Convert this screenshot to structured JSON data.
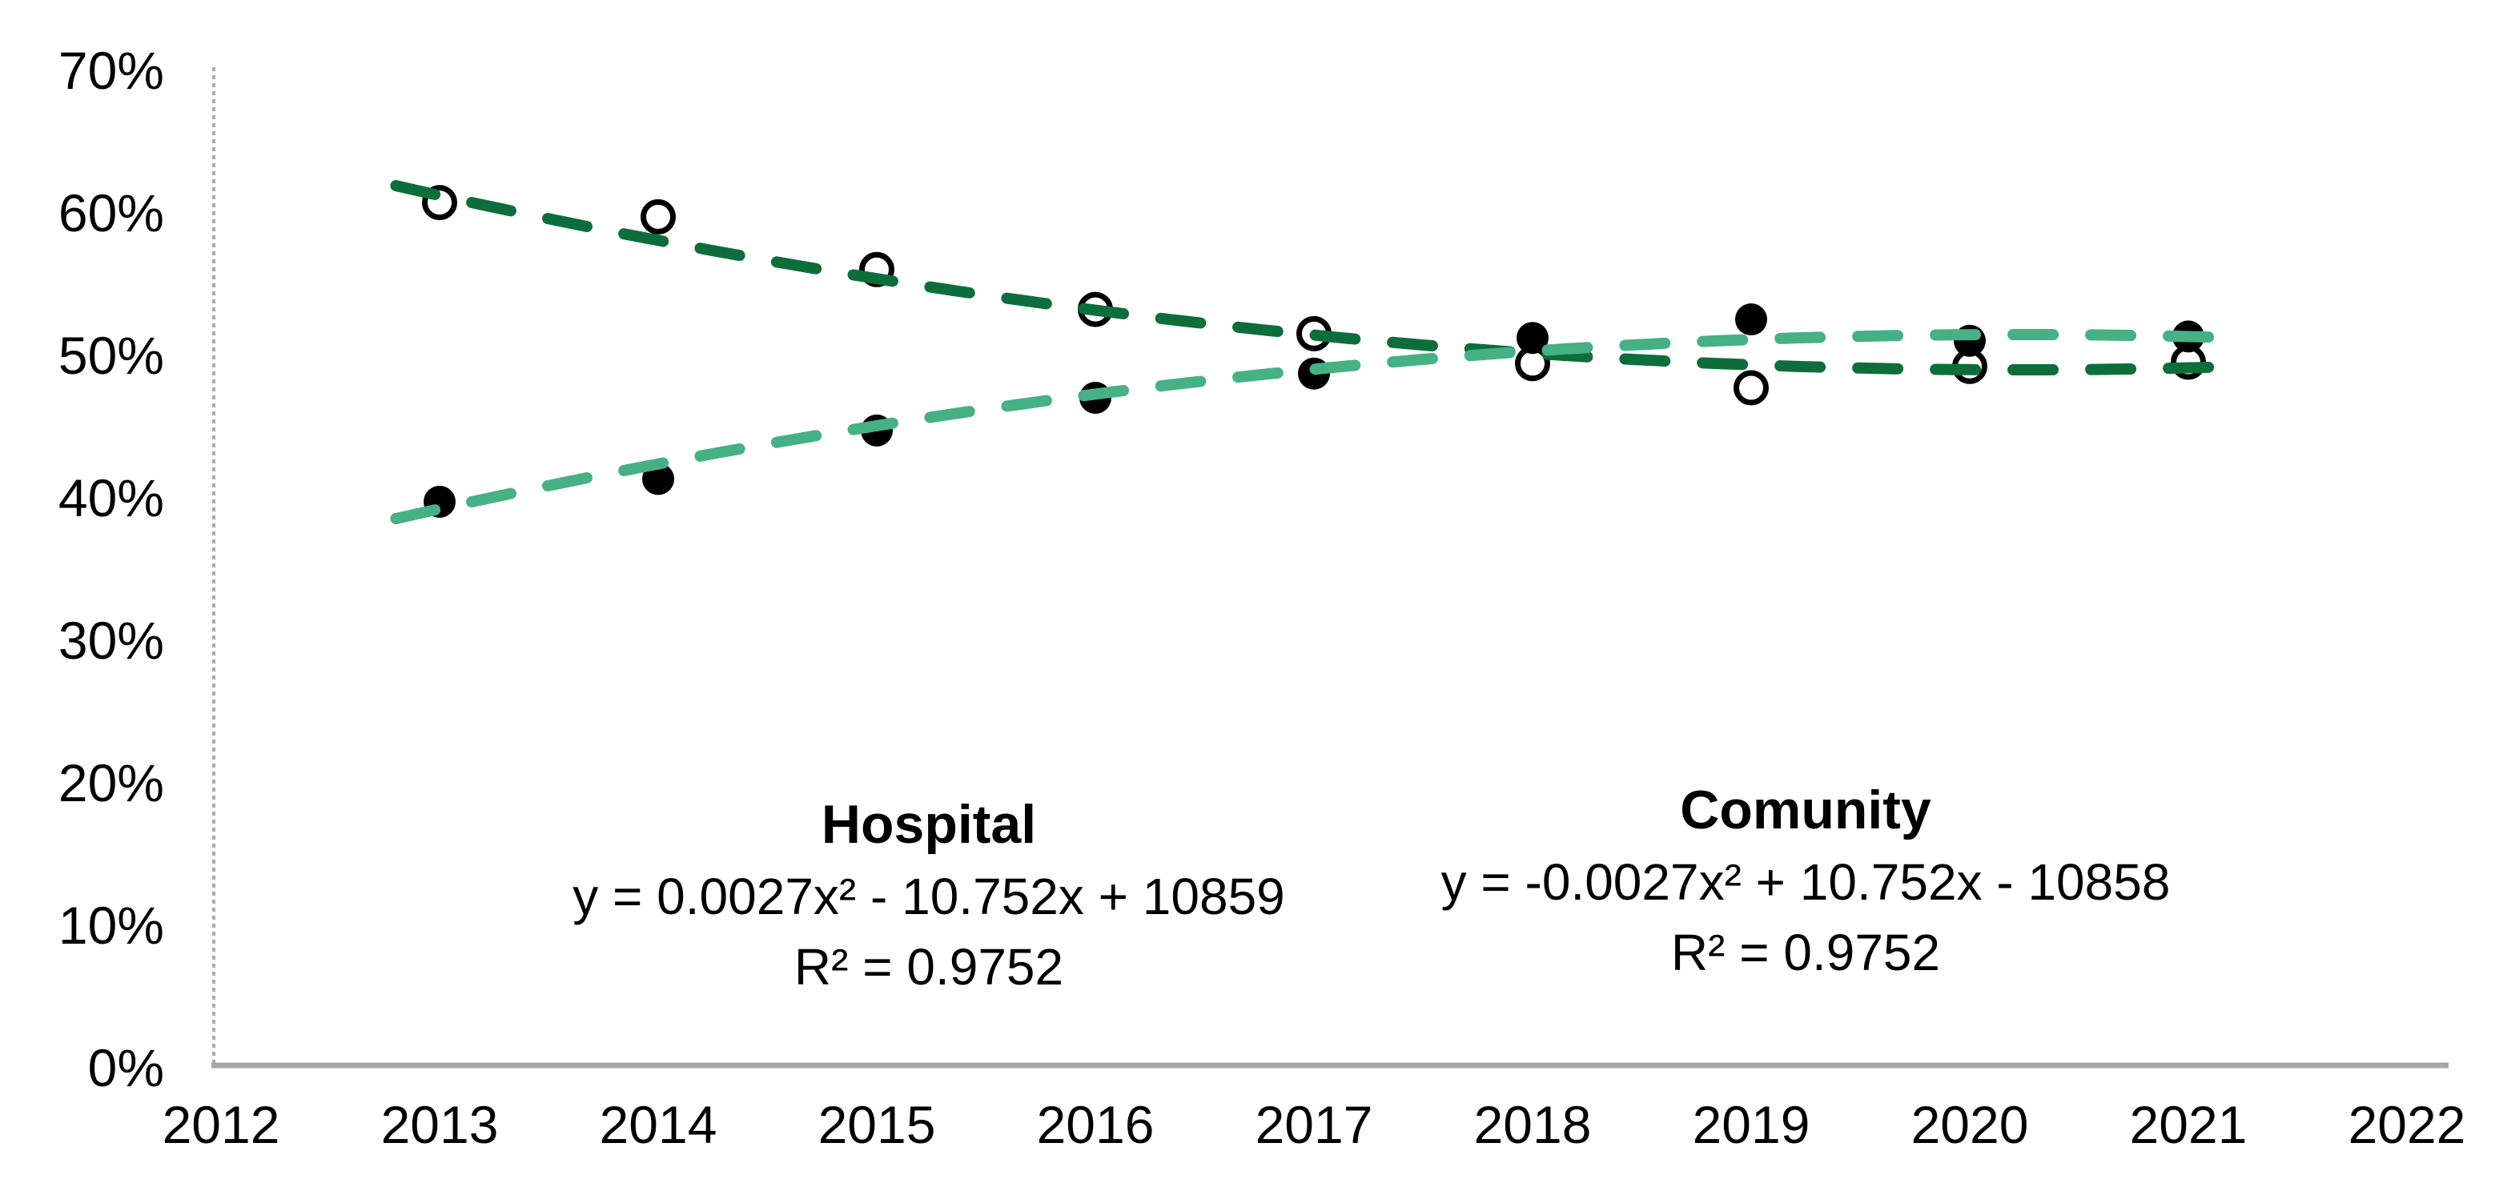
{
  "chart_data": {
    "type": "scatter",
    "title": "",
    "xlabel": "",
    "ylabel": "",
    "xlim": [
      2012,
      2022
    ],
    "ylim": [
      0,
      70
    ],
    "grid": false,
    "y_axis": {
      "labels": [
        "70%",
        "60%",
        "50%",
        "40%",
        "30%",
        "20%",
        "10%",
        "0%"
      ],
      "values": [
        70,
        60,
        50,
        40,
        30,
        20,
        10,
        0
      ]
    },
    "x_axis": {
      "labels": [
        "2012",
        "2013",
        "2014",
        "2015",
        "2016",
        "2017",
        "2018",
        "2019",
        "2020",
        "2021",
        "2022"
      ],
      "values": [
        2012,
        2013,
        2014,
        2015,
        2016,
        2017,
        2018,
        2019,
        2020,
        2021,
        2022
      ]
    },
    "x": [
      2013,
      2014,
      2015,
      2016,
      2017,
      2018,
      2019,
      2020,
      2021
    ],
    "series": [
      {
        "name": "Hospital",
        "marker": "open-circle",
        "marker_color": "#000000",
        "values": [
          60.5,
          59.5,
          55.8,
          53.0,
          51.3,
          49.2,
          47.5,
          49.0,
          49.3
        ]
      },
      {
        "name": "Comunity",
        "marker": "filled-circle",
        "marker_color": "#000000",
        "values": [
          39.5,
          41.1,
          44.5,
          46.8,
          48.5,
          51.0,
          52.3,
          50.8,
          51.1
        ]
      }
    ],
    "trendlines": [
      {
        "series": "Hospital",
        "color": "#0e6e3b",
        "style": "dashed",
        "quad_fit": {
          "a": 0.2344,
          "b": -3.856,
          "c": 64.62,
          "t_is": "year_minus_2012"
        },
        "year_range": [
          2012.8,
          2021.15
        ]
      },
      {
        "series": "Comunity",
        "color": "#45b185",
        "style": "dashed",
        "quad_fit": {
          "a": -0.2344,
          "b": 3.856,
          "c": 35.38,
          "t_is": "year_minus_2012"
        },
        "year_range": [
          2012.8,
          2021.15
        ]
      }
    ],
    "annotations": [
      {
        "id": "hospital",
        "title": "Hospital",
        "equation": "y = 0.0027x² - 10.752x + 10859",
        "r_squared": "R² = 0.9752"
      },
      {
        "id": "comunity",
        "title": "Comunity",
        "equation": "y = -0.0027x² + 10.752x - 10858",
        "r_squared": "R² = 0.9752"
      }
    ],
    "colors": {
      "hospital_trend": "#0e6e3b",
      "comunity_trend": "#45b185",
      "marker": "#000000",
      "axis_line": "#a6a6a6",
      "axis_line_vertical": "#a9a9a9",
      "text": "#000000",
      "background": "#ffffff"
    }
  }
}
